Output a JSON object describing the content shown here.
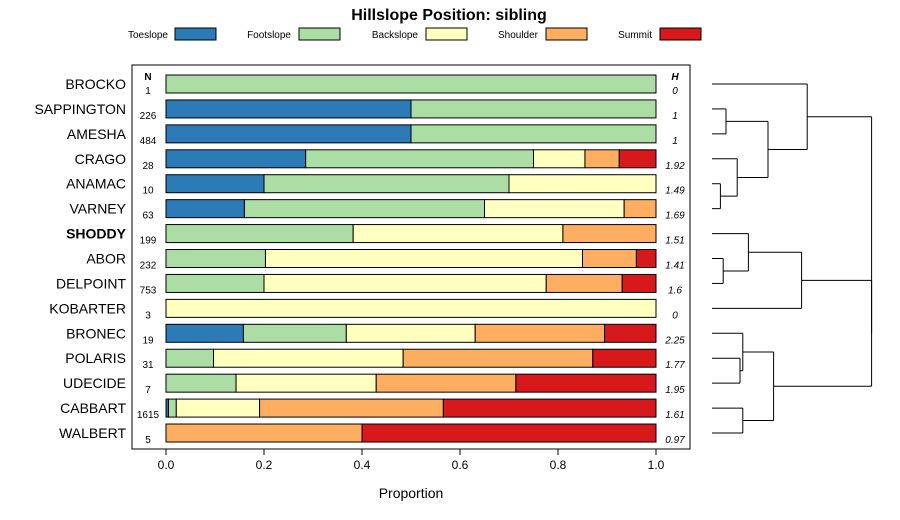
{
  "chart_data": {
    "type": "bar",
    "orientation": "horizontal",
    "stacked": true,
    "title": "Hillslope Position: sibling",
    "xlabel": "Proportion",
    "ylabel": "",
    "xlim": [
      0,
      1
    ],
    "x_ticks": [
      {
        "value": 0.0,
        "label": "0.0"
      },
      {
        "value": 0.2,
        "label": "0.2"
      },
      {
        "value": 0.4,
        "label": "0.4"
      },
      {
        "value": 0.6,
        "label": "0.6"
      },
      {
        "value": 0.8,
        "label": "0.8"
      },
      {
        "value": 1.0,
        "label": "1.0"
      }
    ],
    "legend_position": "top",
    "series": [
      {
        "name": "Toeslope",
        "color": "#2c7bb6"
      },
      {
        "name": "Footslope",
        "color": "#abdda4"
      },
      {
        "name": "Backslope",
        "color": "#ffffbf"
      },
      {
        "name": "Shoulder",
        "color": "#fdae61"
      },
      {
        "name": "Summit",
        "color": "#d7191c"
      }
    ],
    "n_header": "N",
    "h_header": "H",
    "highlight": "SHODDY",
    "categories": [
      {
        "name": "BROCKO",
        "n": "1",
        "h": "0",
        "values": [
          0,
          1,
          0,
          0,
          0
        ]
      },
      {
        "name": "SAPPINGTON",
        "n": "226",
        "h": "1",
        "values": [
          0.5,
          0.5,
          0,
          0,
          0
        ]
      },
      {
        "name": "AMESHA",
        "n": "484",
        "h": "1",
        "values": [
          0.5,
          0.5,
          0,
          0,
          0
        ]
      },
      {
        "name": "CRAGO",
        "n": "28",
        "h": "1.92",
        "values": [
          0.285,
          0.465,
          0.105,
          0.07,
          0.075
        ]
      },
      {
        "name": "ANAMAC",
        "n": "10",
        "h": "1.49",
        "values": [
          0.2,
          0.5,
          0.3,
          0,
          0
        ]
      },
      {
        "name": "VARNEY",
        "n": "63",
        "h": "1.69",
        "values": [
          0.16,
          0.49,
          0.285,
          0.065,
          0
        ]
      },
      {
        "name": "SHODDY",
        "n": "199",
        "h": "1.51",
        "values": [
          0,
          0.382,
          0.428,
          0.19,
          0
        ]
      },
      {
        "name": "ABOR",
        "n": "232",
        "h": "1.41",
        "values": [
          0,
          0.203,
          0.647,
          0.11,
          0.04
        ]
      },
      {
        "name": "DELPOINT",
        "n": "753",
        "h": "1.6",
        "values": [
          0,
          0.2,
          0.576,
          0.155,
          0.069
        ]
      },
      {
        "name": "KOBARTER",
        "n": "3",
        "h": "0",
        "values": [
          0,
          0,
          1,
          0,
          0
        ]
      },
      {
        "name": "BRONEC",
        "n": "19",
        "h": "2.25",
        "values": [
          0.158,
          0.21,
          0.263,
          0.264,
          0.105
        ]
      },
      {
        "name": "POLARIS",
        "n": "31",
        "h": "1.77",
        "values": [
          0,
          0.097,
          0.387,
          0.387,
          0.129
        ]
      },
      {
        "name": "UDECIDE",
        "n": "7",
        "h": "1.95",
        "values": [
          0,
          0.143,
          0.286,
          0.285,
          0.286
        ]
      },
      {
        "name": "CABBART",
        "n": "1615",
        "h": "1.61",
        "values": [
          0.005,
          0.016,
          0.17,
          0.375,
          0.434
        ]
      },
      {
        "name": "WALBERT",
        "n": "5",
        "h": "0.97",
        "values": [
          0,
          0,
          0,
          0.4,
          0.6
        ]
      }
    ],
    "dendrogram": {
      "type": "hierarchical-clustering",
      "merges": [
        [
          1,
          2,
          0.02
        ],
        [
          0,
          13,
          0.07
        ],
        [
          4,
          5,
          0.07
        ],
        [
          3,
          14,
          0.11
        ],
        [
          7,
          8,
          0.06
        ],
        [
          -5,
          9,
          0.13
        ],
        [
          6,
          15,
          0.22
        ],
        [
          11,
          12,
          0.05
        ],
        [
          10,
          17,
          0.08
        ],
        [
          13,
          14,
          0.1
        ],
        [
          16,
          18,
          0.18
        ],
        [
          20,
          19,
          0.26
        ],
        [
          21,
          22,
          0.46
        ],
        [
          -1,
          23,
          0.58
        ]
      ]
    }
  }
}
